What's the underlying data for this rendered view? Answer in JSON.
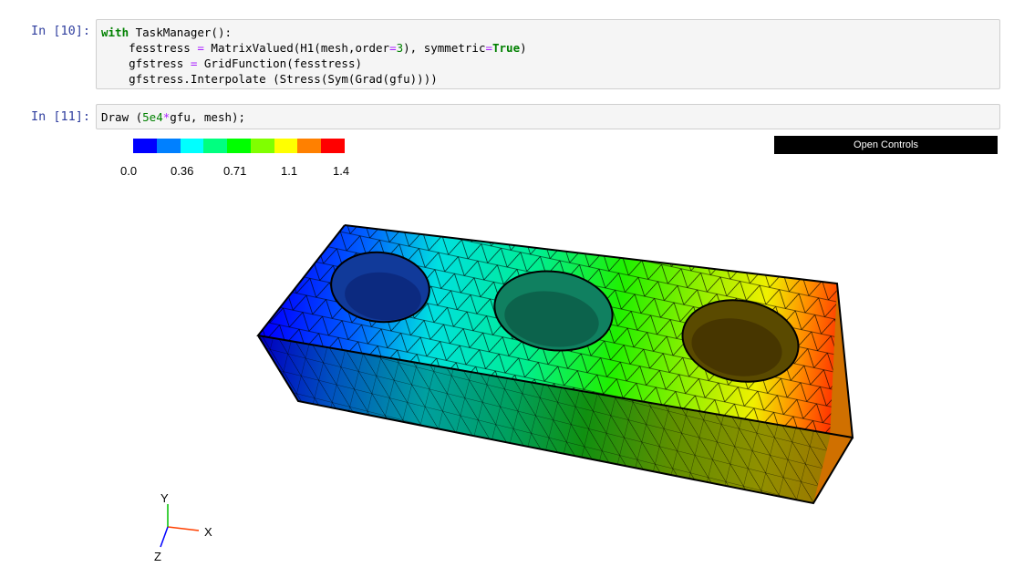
{
  "cell10": {
    "prompt": "In [10]:",
    "lines": [
      "with TaskManager():",
      "    fesstress = MatrixValued(H1(mesh,order=3), symmetric=True)",
      "    gfstress = GridFunction(fesstress)",
      "    gfstress.Interpolate (Stress(Sym(Grad(gfu))))"
    ]
  },
  "cell11": {
    "prompt": "In [11]:",
    "lines": [
      "Draw (5e4*gfu, mesh);"
    ]
  },
  "colorbar": {
    "colors": [
      "#0000ff",
      "#0080ff",
      "#00ffff",
      "#00ff80",
      "#00ff00",
      "#80ff00",
      "#ffff00",
      "#ff8000",
      "#ff0000"
    ],
    "ticks": [
      "0.0",
      "0.36",
      "0.71",
      "1.1",
      "1.4"
    ]
  },
  "controls": {
    "open_label": "Open Controls"
  },
  "axes": {
    "x_label": "X",
    "y_label": "Y",
    "z_label": "Z",
    "x_color": "#ff4000",
    "y_color": "#00c000",
    "z_color": "#0000ff"
  }
}
